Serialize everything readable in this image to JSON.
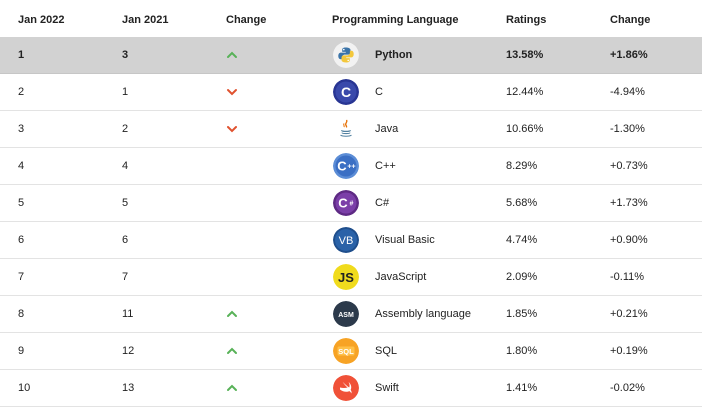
{
  "header": {
    "jan2022": "Jan 2022",
    "jan2021": "Jan 2021",
    "change": "Change",
    "language": "Programming Language",
    "ratings": "Ratings",
    "change2": "Change"
  },
  "rows": [
    {
      "rank2022": "1",
      "rank2021": "3",
      "trend": "up",
      "icon": "python-icon",
      "language": "Python",
      "rating": "13.58%",
      "change": "+1.86%"
    },
    {
      "rank2022": "2",
      "rank2021": "1",
      "trend": "down",
      "icon": "c-language-icon",
      "language": "C",
      "rating": "12.44%",
      "change": "-4.94%"
    },
    {
      "rank2022": "3",
      "rank2021": "2",
      "trend": "down",
      "icon": "java-icon",
      "language": "Java",
      "rating": "10.66%",
      "change": "-1.30%"
    },
    {
      "rank2022": "4",
      "rank2021": "4",
      "trend": "none",
      "icon": "cplusplus-icon",
      "language": "C++",
      "rating": "8.29%",
      "change": "+0.73%"
    },
    {
      "rank2022": "5",
      "rank2021": "5",
      "trend": "none",
      "icon": "csharp-icon",
      "language": "C#",
      "rating": "5.68%",
      "change": "+1.73%"
    },
    {
      "rank2022": "6",
      "rank2021": "6",
      "trend": "none",
      "icon": "visual-basic-icon",
      "language": "Visual Basic",
      "rating": "4.74%",
      "change": "+0.90%",
      "icon_text": "VB"
    },
    {
      "rank2022": "7",
      "rank2021": "7",
      "trend": "none",
      "icon": "javascript-icon",
      "language": "JavaScript",
      "rating": "2.09%",
      "change": "-0.11%",
      "icon_text": "JS"
    },
    {
      "rank2022": "8",
      "rank2021": "11",
      "trend": "up",
      "icon": "assembly-icon",
      "language": "Assembly language",
      "rating": "1.85%",
      "change": "+0.21%",
      "icon_text": "ASM"
    },
    {
      "rank2022": "9",
      "rank2021": "12",
      "trend": "up",
      "icon": "sql-icon",
      "language": "SQL",
      "rating": "1.80%",
      "change": "+0.19%",
      "icon_text": "SQL"
    },
    {
      "rank2022": "10",
      "rank2021": "13",
      "trend": "up",
      "icon": "swift-icon",
      "language": "Swift",
      "rating": "1.41%",
      "change": "-0.02%"
    }
  ],
  "colors": {
    "highlight_row": "#d2d2d2",
    "trend_up": "#58b258",
    "trend_down": "#e0522f"
  }
}
